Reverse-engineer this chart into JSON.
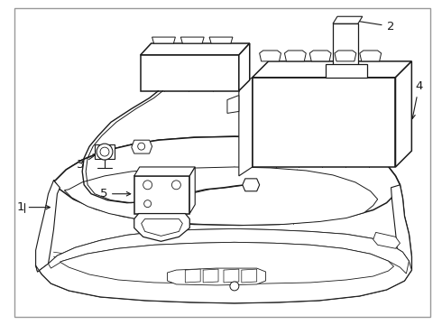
{
  "background_color": "#ffffff",
  "border_color": "#aaaaaa",
  "line_color": "#1a1a1a",
  "lw_main": 1.1,
  "lw_thin": 0.55,
  "lw_border": 1.0,
  "fig_width": 4.9,
  "fig_height": 3.6,
  "dpi": 100,
  "label_fontsize": 9.5
}
